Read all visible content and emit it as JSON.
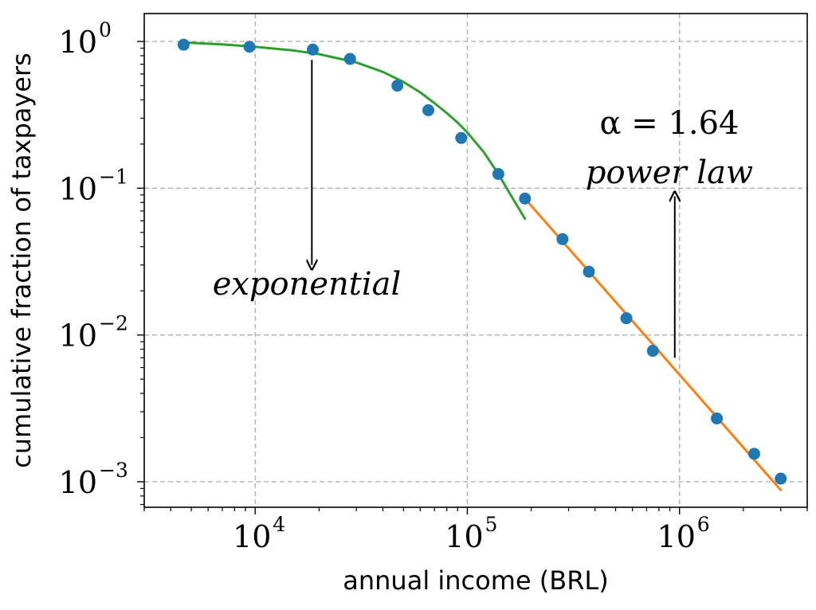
{
  "chart_data": {
    "type": "scatter",
    "xlabel": "annual income (BRL)",
    "ylabel": "cumulative fraction of taxpayers",
    "x_scale": "log",
    "y_scale": "log",
    "xlim": [
      3000,
      4000000
    ],
    "ylim": [
      0.00067,
      1.55
    ],
    "grid": true,
    "x_ticks": [
      {
        "base": "10",
        "exp": "4",
        "value": 10000
      },
      {
        "base": "10",
        "exp": "5",
        "value": 100000
      },
      {
        "base": "10",
        "exp": "6",
        "value": 1000000
      }
    ],
    "y_ticks": [
      {
        "base": "10",
        "exp": "0",
        "value": 1
      },
      {
        "base": "10",
        "exp": "−1",
        "value": 0.1
      },
      {
        "base": "10",
        "exp": "−2",
        "value": 0.01
      },
      {
        "base": "10",
        "exp": "−3",
        "value": 0.001
      }
    ],
    "points": {
      "color": "#1f77b4",
      "x": [
        4600,
        9400,
        18700,
        28000,
        46800,
        65500,
        93600,
        140000,
        187000,
        281000,
        374000,
        562000,
        749000,
        1500000,
        2250000,
        3000000
      ],
      "y": [
        0.95,
        0.92,
        0.88,
        0.76,
        0.5,
        0.34,
        0.22,
        0.125,
        0.085,
        0.045,
        0.027,
        0.013,
        0.0078,
        0.0027,
        0.00155,
        0.00105
      ]
    },
    "fits": [
      {
        "color": "#2ca02c",
        "x": [
          4600,
          7000,
          10000,
          15000,
          20000,
          30000,
          40000,
          50000,
          60000,
          70000,
          80000,
          90000,
          100000,
          120000,
          140000,
          160000,
          187000
        ],
        "y": [
          0.985,
          0.955,
          0.92,
          0.87,
          0.82,
          0.72,
          0.62,
          0.53,
          0.45,
          0.38,
          0.325,
          0.28,
          0.24,
          0.175,
          0.125,
          0.09,
          0.062
        ]
      },
      {
        "color": "#ff7f0e",
        "x": [
          187000,
          3000000
        ],
        "y": [
          0.085,
          0.00088
        ]
      }
    ],
    "annotations": {
      "exponential": {
        "text": "exponential",
        "x": 18500,
        "y_from": 0.75,
        "y_to": 0.03
      },
      "power_law": {
        "text": "power law",
        "alpha": "α = 1.64",
        "x": 950000,
        "y_from": 0.007,
        "y_to": 0.088
      }
    }
  }
}
